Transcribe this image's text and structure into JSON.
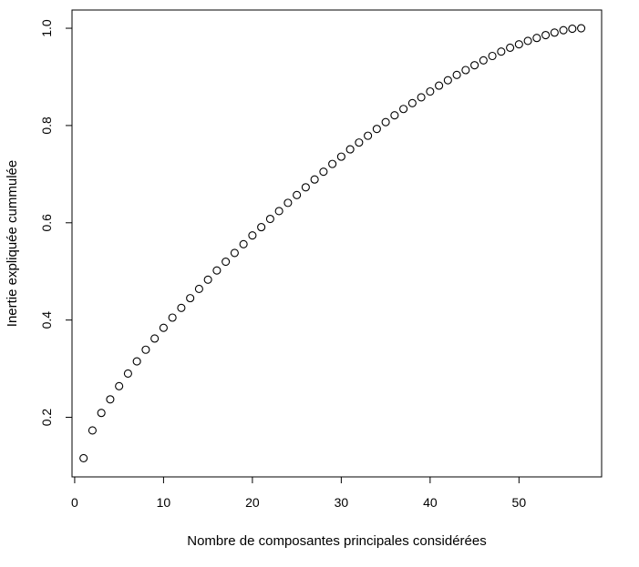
{
  "chart_data": {
    "type": "scatter",
    "title": "",
    "xlabel": "Nombre de composantes principales considérées",
    "ylabel": "Inertie expliquée cummulée",
    "xlim": [
      -0.3,
      59.3
    ],
    "ylim": [
      0.0775,
      1.0375
    ],
    "xticks": [
      0,
      10,
      20,
      30,
      40,
      50
    ],
    "yticks": [
      0.2,
      0.4,
      0.6,
      0.8,
      1.0
    ],
    "xtick_labels": [
      "0",
      "10",
      "20",
      "30",
      "40",
      "50"
    ],
    "ytick_labels": [
      "0.2",
      "0.4",
      "0.6",
      "0.8",
      "1.0"
    ],
    "marker": "open-circle",
    "grid": false,
    "x": [
      1,
      2,
      3,
      4,
      5,
      6,
      7,
      8,
      9,
      10,
      11,
      12,
      13,
      14,
      15,
      16,
      17,
      18,
      19,
      20,
      21,
      22,
      23,
      24,
      25,
      26,
      27,
      28,
      29,
      30,
      31,
      32,
      33,
      34,
      35,
      36,
      37,
      38,
      39,
      40,
      41,
      42,
      43,
      44,
      45,
      46,
      47,
      48,
      49,
      50,
      51,
      52,
      53,
      54,
      55,
      56,
      57
    ],
    "y": [
      0.116,
      0.173,
      0.209,
      0.237,
      0.264,
      0.29,
      0.315,
      0.339,
      0.362,
      0.384,
      0.405,
      0.425,
      0.445,
      0.464,
      0.483,
      0.502,
      0.52,
      0.538,
      0.556,
      0.574,
      0.591,
      0.608,
      0.624,
      0.641,
      0.657,
      0.673,
      0.689,
      0.705,
      0.721,
      0.736,
      0.751,
      0.765,
      0.779,
      0.793,
      0.807,
      0.821,
      0.834,
      0.846,
      0.858,
      0.87,
      0.882,
      0.893,
      0.904,
      0.914,
      0.924,
      0.934,
      0.943,
      0.952,
      0.96,
      0.967,
      0.974,
      0.98,
      0.986,
      0.991,
      0.996,
      0.999,
      1.0
    ]
  }
}
